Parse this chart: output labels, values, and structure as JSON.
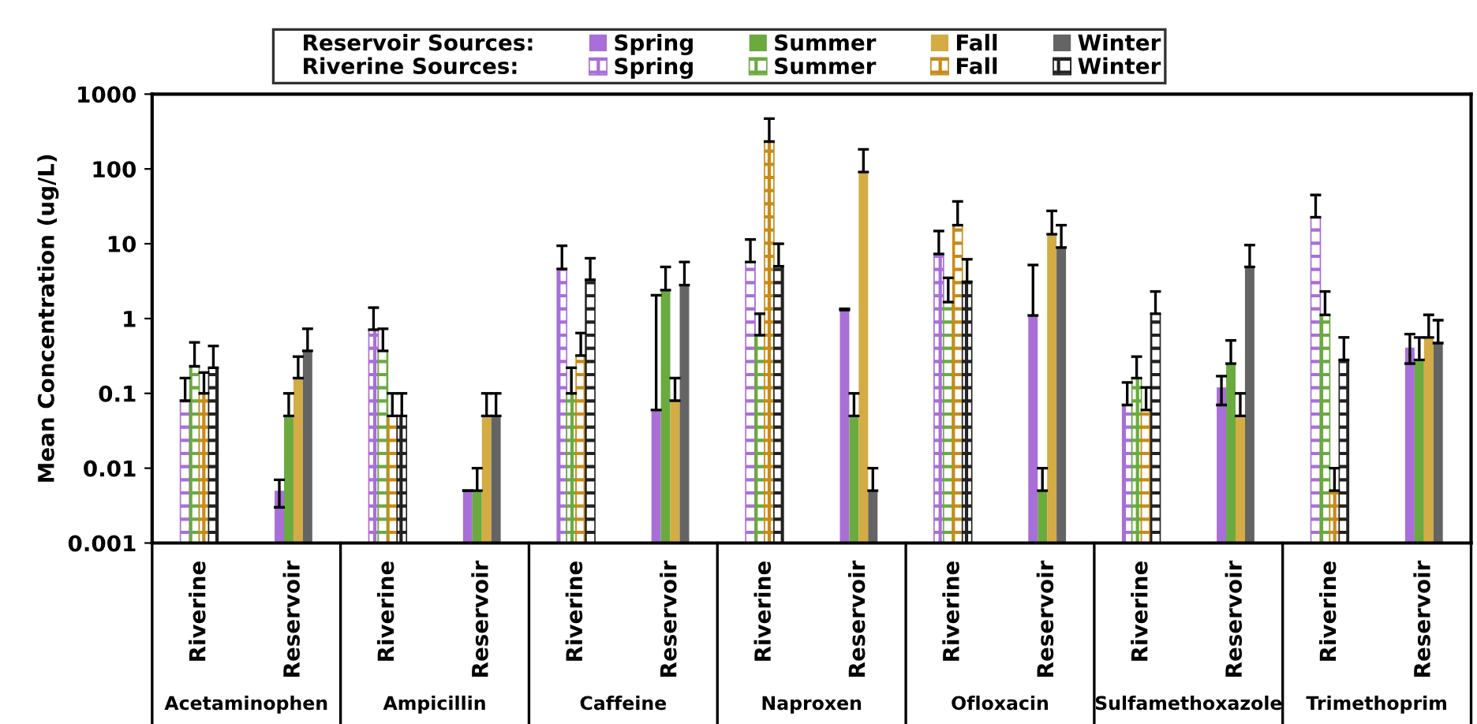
{
  "chart_data": {
    "type": "bar",
    "ylabel": "Mean Concentration (ug/L)",
    "categories": [
      "Riverine",
      "Reservoir",
      "Riverine",
      "Reservoir",
      "Riverine",
      "Reservoir",
      "Riverine",
      "Reservoir",
      "Riverine",
      "Reservoir",
      "Riverine",
      "Reservoir",
      "Riverine",
      "Reservoir"
    ],
    "series": [
      {
        "name": "Spring",
        "color": "#a86fd8",
        "values": [
          null,
          0.005,
          null,
          0.005,
          null,
          0.06,
          null,
          1.3,
          null,
          1.1,
          null,
          0.12,
          null,
          0.41
        ],
        "errors": [
          null,
          [
            0.003,
            0.007
          ],
          null,
          null,
          null,
          [
            0.06,
            2.05
          ],
          null,
          [
            1.3,
            1.35
          ],
          null,
          [
            1.1,
            5.2
          ],
          null,
          [
            0.07,
            0.17
          ],
          null,
          [
            0.25,
            0.62
          ]
        ]
      },
      {
        "name": "Summer",
        "color": "#6aaa3f",
        "values": [
          null,
          0.05,
          null,
          0.005,
          null,
          2.4,
          null,
          0.05,
          null,
          0.005,
          null,
          0.25,
          null,
          0.28
        ],
        "errors": [
          null,
          [
            0.05,
            0.1
          ],
          null,
          [
            0.005,
            0.01
          ],
          null,
          [
            2.4,
            4.9
          ],
          null,
          [
            0.05,
            0.1
          ],
          null,
          [
            0.005,
            0.01
          ],
          null,
          [
            0.25,
            0.51
          ],
          null,
          [
            0.28,
            0.56
          ]
        ]
      },
      {
        "name": "Fall",
        "color": "#d4ac44",
        "values": [
          null,
          0.16,
          null,
          0.05,
          null,
          0.08,
          null,
          91,
          null,
          13.4,
          null,
          0.05,
          null,
          0.56
        ],
        "errors": [
          null,
          [
            0.16,
            0.31
          ],
          null,
          [
            0.05,
            0.1
          ],
          null,
          [
            0.08,
            0.16
          ],
          null,
          [
            91,
            183
          ],
          null,
          [
            13.4,
            27.5
          ],
          null,
          [
            0.05,
            0.1
          ],
          null,
          [
            0.56,
            1.12
          ]
        ]
      },
      {
        "name": "Winter",
        "color": "#646464",
        "values": [
          null,
          0.37,
          null,
          0.05,
          null,
          2.8,
          null,
          0.005,
          null,
          8.9,
          null,
          4.9,
          null,
          0.47
        ],
        "errors": [
          null,
          [
            0.37,
            0.73
          ],
          null,
          [
            0.05,
            0.1
          ],
          null,
          [
            2.8,
            5.7
          ],
          null,
          [
            0.005,
            0.01
          ],
          null,
          [
            8.9,
            17.7
          ],
          null,
          [
            4.9,
            9.6
          ],
          null,
          [
            0.47,
            0.95
          ]
        ]
      },
      {
        "name": "Spring",
        "color": "#a86fd8",
        "values": [
          0.08,
          null,
          0.71,
          null,
          4.6,
          null,
          5.7,
          null,
          7.3,
          null,
          0.07,
          null,
          22.6,
          null
        ],
        "errors": [
          [
            0.08,
            0.16
          ],
          null,
          [
            0.71,
            1.4
          ],
          null,
          [
            4.6,
            9.4
          ],
          null,
          [
            5.7,
            11.4
          ],
          null,
          [
            7.3,
            14.8
          ],
          null,
          [
            0.07,
            0.14
          ],
          null,
          [
            22.6,
            44.8
          ],
          null
        ]
      },
      {
        "name": "Summer",
        "color": "#6aaa3f",
        "values": [
          0.23,
          null,
          0.37,
          null,
          0.1,
          null,
          0.6,
          null,
          1.66,
          null,
          0.16,
          null,
          1.12,
          null
        ],
        "errors": [
          [
            0.23,
            0.48
          ],
          null,
          [
            0.37,
            0.73
          ],
          null,
          [
            0.1,
            0.22
          ],
          null,
          [
            0.6,
            1.16
          ],
          null,
          [
            1.66,
            3.5
          ],
          null,
          [
            0.16,
            0.31
          ],
          null,
          [
            1.12,
            2.3
          ],
          null
        ]
      },
      {
        "name": "Fall",
        "color": "#c98a1a",
        "values": [
          0.1,
          null,
          0.05,
          null,
          0.32,
          null,
          232,
          null,
          17.7,
          null,
          0.06,
          null,
          0.005,
          null
        ],
        "errors": [
          [
            0.1,
            0.19
          ],
          null,
          [
            0.05,
            0.1
          ],
          null,
          [
            0.32,
            0.64
          ],
          null,
          [
            232,
            470
          ],
          null,
          [
            17.7,
            36.8
          ],
          null,
          [
            0.06,
            0.12
          ],
          null,
          [
            0.005,
            0.01
          ],
          null
        ]
      },
      {
        "name": "Winter",
        "color": "#222222",
        "values": [
          0.22,
          null,
          0.05,
          null,
          3.3,
          null,
          5.0,
          null,
          3.1,
          null,
          1.16,
          null,
          0.28,
          null
        ],
        "errors": [
          [
            0.22,
            0.43
          ],
          null,
          [
            0.05,
            0.1
          ],
          null,
          [
            3.3,
            6.4
          ],
          null,
          [
            5.0,
            10
          ],
          null,
          [
            3.1,
            6.2
          ],
          null,
          [
            1.16,
            2.3
          ],
          null,
          [
            0.28,
            0.56
          ],
          null
        ]
      }
    ],
    "annotations": [
      "Reservoir Sources:",
      "Riverine Sources:",
      "Acetaminophen",
      "Ampicillin",
      "Caffeine",
      "Naproxen",
      "Ofloxacin",
      "Sulfamethoxazole",
      "Trimethoprim"
    ],
    "log": true,
    "ylim": [
      0.001,
      1000
    ],
    "yticks": [
      0.001,
      0.01,
      0.1,
      1,
      10,
      100,
      1000
    ],
    "grid": false,
    "legend": "top"
  }
}
